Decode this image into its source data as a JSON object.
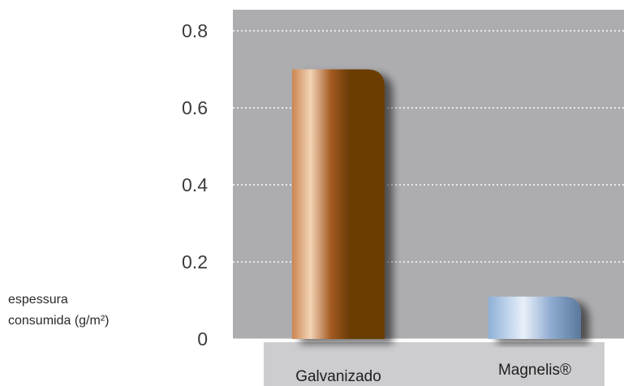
{
  "chart_data": {
    "type": "bar",
    "categories": [
      "Galvanizado",
      "Magnelis®"
    ],
    "values": [
      0.7,
      0.11
    ],
    "ylim": [
      0,
      0.8
    ],
    "yticks": [
      0.8,
      0.6,
      0.4,
      0.2,
      0
    ],
    "ytick_labels": [
      "0.8",
      "0.6",
      "0.4",
      "0.2",
      "0"
    ],
    "title": "",
    "xlabel": "",
    "ylabel_lines": [
      "espessura",
      "consumida (g/m²)"
    ],
    "grid": true,
    "colors": {
      "plot_background": "#adadb0",
      "gridline": "#ffffff",
      "category_band": "#cdcdd0",
      "bar_galvanizado": [
        "#c98650",
        "#f3d3b6",
        "#a35a22",
        "#6a3c05"
      ],
      "bar_magnelis": [
        "#8fb0d8",
        "#e8f1fa",
        "#8eaad0",
        "#5a789c"
      ]
    }
  }
}
